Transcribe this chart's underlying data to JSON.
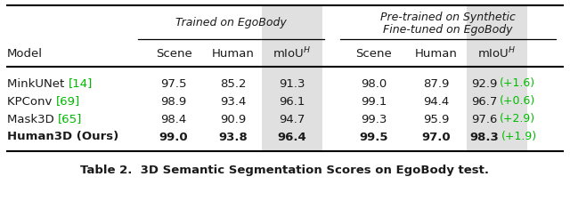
{
  "title": "Table 2.  3D Semantic Segmentation Scores on EgoBody test.",
  "header1": "Trained on EgoBody",
  "header2": "Pre-trained on Synthetic\nFine-tuned on EgoBody",
  "rows": [
    {
      "model_base": "MinkUNet ",
      "model_ref": "[14]",
      "bold": false,
      "v1": "97.5",
      "v2": "85.2",
      "v3": "91.3",
      "v4": "98.0",
      "v5": "87.9",
      "v6": "92.9",
      "delta": "(+1.6)"
    },
    {
      "model_base": "KPConv ",
      "model_ref": "[69]",
      "bold": false,
      "v1": "98.9",
      "v2": "93.4",
      "v3": "96.1",
      "v4": "99.1",
      "v5": "94.4",
      "v6": "96.7",
      "delta": "(+0.6)"
    },
    {
      "model_base": "Mask3D ",
      "model_ref": "[65]",
      "bold": false,
      "v1": "98.4",
      "v2": "90.9",
      "v3": "94.7",
      "v4": "99.3",
      "v5": "95.9",
      "v6": "97.6",
      "delta": "(+2.9)"
    },
    {
      "model_base": "Human3D (Ours)",
      "model_ref": null,
      "bold": true,
      "v1": "99.0",
      "v2": "93.8",
      "v3": "96.4",
      "v4": "99.5",
      "v5": "97.0",
      "v6": "98.3",
      "delta": "(+1.9)"
    }
  ],
  "bg_color": "#ffffff",
  "text_color": "#1a1a1a",
  "green_color": "#00bb00",
  "shaded_col_bg": "#e0e0e0",
  "figsize": [
    6.4,
    2.44
  ],
  "dpi": 100
}
